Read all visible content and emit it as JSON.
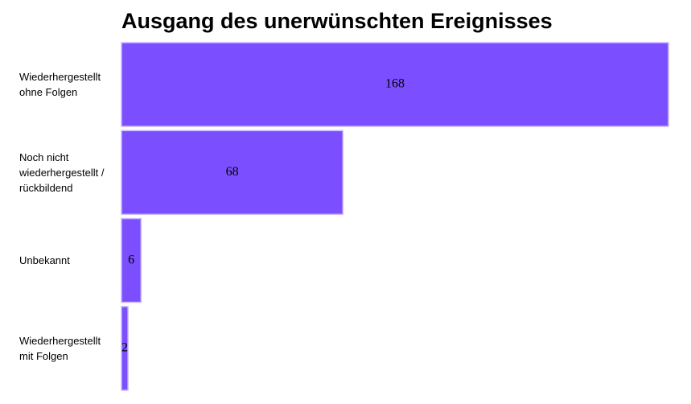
{
  "chart_data": {
    "type": "bar",
    "orientation": "horizontal",
    "title": "Ausgang des unerwünschten Ereignisses",
    "categories": [
      "Wiederhergestellt ohne Folgen",
      "Noch nicht wiederhergestellt / rückbildend",
      "Unbekannt",
      "Wiederhergestellt mit Folgen"
    ],
    "values": [
      168,
      68,
      6,
      2
    ],
    "color": "#7b4fff"
  }
}
